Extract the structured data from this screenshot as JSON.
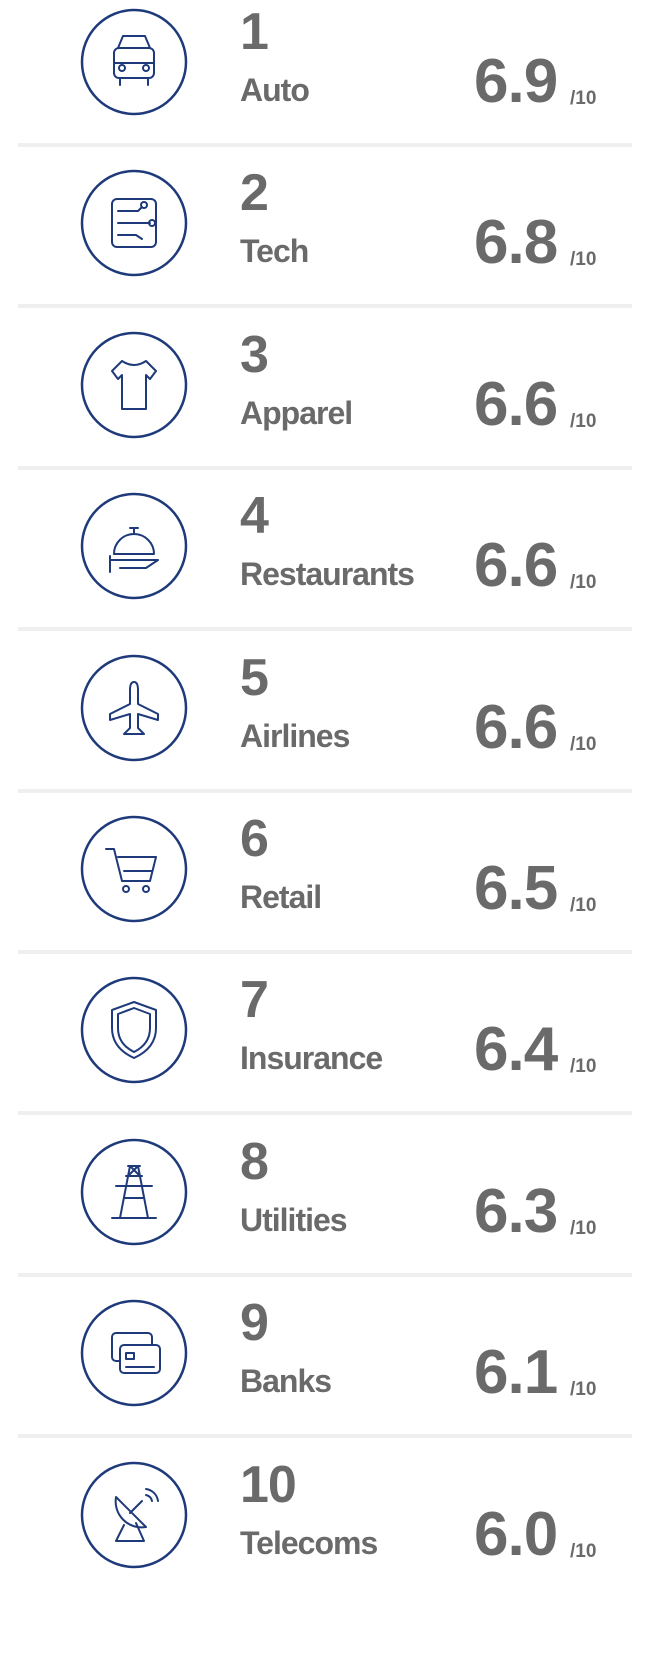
{
  "items": [
    {
      "rank": "1",
      "label": "Auto",
      "score": "6.9"
    },
    {
      "rank": "2",
      "label": "Tech",
      "score": "6.8"
    },
    {
      "rank": "3",
      "label": "Apparel",
      "score": "6.6"
    },
    {
      "rank": "4",
      "label": "Restaurants",
      "score": "6.6"
    },
    {
      "rank": "5",
      "label": "Airlines",
      "score": "6.6"
    },
    {
      "rank": "6",
      "label": "Retail",
      "score": "6.5"
    },
    {
      "rank": "7",
      "label": "Insurance",
      "score": "6.4"
    },
    {
      "rank": "8",
      "label": "Utilities",
      "score": "6.3"
    },
    {
      "rank": "9",
      "label": "Banks",
      "score": "6.1"
    },
    {
      "rank": "10",
      "label": "Telecoms",
      "score": "6.0"
    }
  ],
  "scale_suffix": "/10"
}
